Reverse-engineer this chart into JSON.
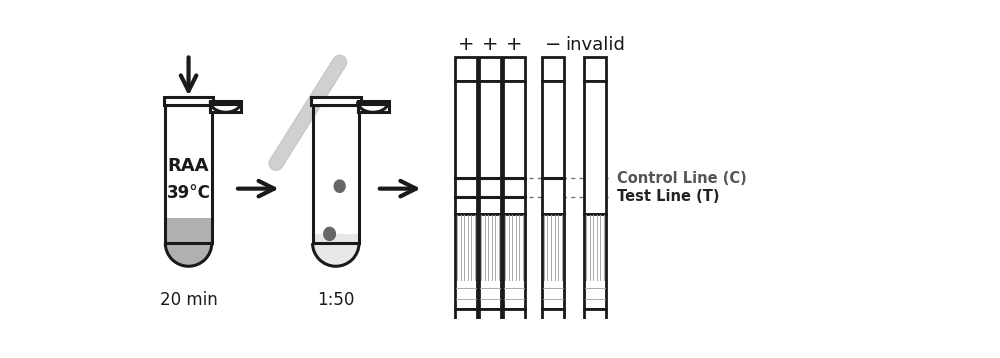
{
  "bg_color": "#ffffff",
  "text_color": "#1a1a1a",
  "gray_fill": "#b0b0b0",
  "light_gray_strip": "#c8c8c8",
  "dark_gray_drop": "#666666",
  "hatch_gray": "#aaaaaa",
  "dotted_gray": "#777777",
  "label_ctrl_color": "#555555",
  "label_test_color": "#222222",
  "tube1_label_line1": "RAA",
  "tube1_label_line2": "39°C",
  "tube1_bottom": "20 min",
  "tube2_bottom": "1:50",
  "strip_top_labels": [
    "+",
    "+",
    "+",
    "−",
    "invalid"
  ],
  "control_line_label": "Control Line (C)",
  "test_line_label": "Test Line (T)",
  "has_ctrl": [
    true,
    true,
    true,
    true,
    false
  ],
  "has_test": [
    true,
    true,
    true,
    false,
    false
  ]
}
